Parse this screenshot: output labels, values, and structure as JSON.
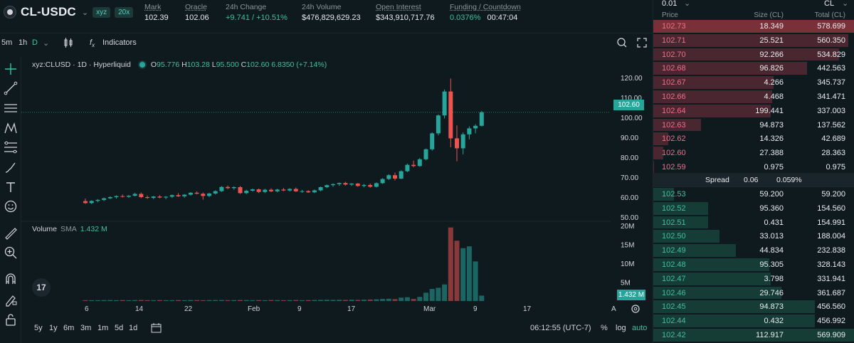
{
  "header": {
    "pair": "CL-USDC",
    "dex_tag": "xyz",
    "leverage_tag": "20x",
    "stats": [
      {
        "label": "Mark",
        "value": "102.39"
      },
      {
        "label": "Oracle",
        "value": "102.06"
      },
      {
        "label": "24h Change",
        "value": "+9.741 / +10.51%"
      },
      {
        "label": "24h Volume",
        "value": "$476,829,629.23"
      },
      {
        "label": "Open Interest",
        "value": "$343,910,717.76"
      },
      {
        "label": "Funding / Countdown",
        "value": "0.0376%",
        "countdown": "00:47:04"
      }
    ]
  },
  "toolbar": {
    "intervals": [
      "5m",
      "1h",
      "D"
    ],
    "active_interval": "D",
    "indicators_label": "Indicators"
  },
  "chart": {
    "symbol_line": "xyz:CLUSD · 1D · Hyperliquid",
    "o_label": "O",
    "o": "95.776",
    "h_label": "H",
    "h": "103.28",
    "l_label": "L",
    "l": "95.500",
    "c_label": "C",
    "c": "102.60",
    "change": "6.8350 (+7.14%)",
    "last_price_tag": "102.60",
    "volume_label": "Volume",
    "volume_sma_label": "SMA",
    "volume_value": "1.432 M",
    "volume_tag": "1.432 M"
  },
  "chart_data": {
    "type": "candlestick",
    "price_axis_ticks": [
      "120.00",
      "110.00",
      "100.00",
      "90.00",
      "80.00",
      "70.00",
      "60.00",
      "50.00"
    ],
    "price_ylim": [
      50,
      125
    ],
    "volume_axis_ticks": [
      "20M",
      "15M",
      "10M",
      "5M"
    ],
    "x_tick_labels": [
      "6",
      "14",
      "22",
      "Feb",
      "9",
      "17",
      "Mar",
      "9",
      "17"
    ],
    "candles": [
      {
        "o": 58.0,
        "h": 59.3,
        "l": 56.6,
        "c": 57.0
      },
      {
        "o": 57.0,
        "h": 58.4,
        "l": 56.5,
        "c": 58.1
      },
      {
        "o": 58.1,
        "h": 59.0,
        "l": 57.4,
        "c": 58.6
      },
      {
        "o": 58.6,
        "h": 59.8,
        "l": 58.0,
        "c": 59.4
      },
      {
        "o": 59.4,
        "h": 60.4,
        "l": 59.0,
        "c": 60.0
      },
      {
        "o": 60.0,
        "h": 60.9,
        "l": 59.3,
        "c": 60.5
      },
      {
        "o": 60.5,
        "h": 61.3,
        "l": 59.8,
        "c": 60.2
      },
      {
        "o": 60.2,
        "h": 61.0,
        "l": 59.6,
        "c": 60.7
      },
      {
        "o": 60.7,
        "h": 62.2,
        "l": 60.3,
        "c": 61.6
      },
      {
        "o": 61.6,
        "h": 62.3,
        "l": 59.5,
        "c": 60.0
      },
      {
        "o": 60.0,
        "h": 60.8,
        "l": 59.1,
        "c": 59.6
      },
      {
        "o": 59.6,
        "h": 60.6,
        "l": 59.0,
        "c": 60.3
      },
      {
        "o": 60.3,
        "h": 61.0,
        "l": 59.4,
        "c": 59.8
      },
      {
        "o": 59.8,
        "h": 60.5,
        "l": 58.9,
        "c": 60.2
      },
      {
        "o": 60.2,
        "h": 61.3,
        "l": 59.6,
        "c": 61.0
      },
      {
        "o": 61.0,
        "h": 62.0,
        "l": 60.1,
        "c": 60.4
      },
      {
        "o": 60.4,
        "h": 61.5,
        "l": 59.7,
        "c": 61.2
      },
      {
        "o": 61.2,
        "h": 62.5,
        "l": 60.8,
        "c": 62.2
      },
      {
        "o": 62.2,
        "h": 62.9,
        "l": 61.4,
        "c": 61.7
      },
      {
        "o": 61.7,
        "h": 62.3,
        "l": 58.7,
        "c": 60.6
      },
      {
        "o": 60.6,
        "h": 62.2,
        "l": 60.0,
        "c": 61.8
      },
      {
        "o": 61.8,
        "h": 63.4,
        "l": 61.3,
        "c": 63.0
      },
      {
        "o": 63.0,
        "h": 65.5,
        "l": 62.6,
        "c": 65.1
      },
      {
        "o": 65.1,
        "h": 65.8,
        "l": 64.0,
        "c": 64.5
      },
      {
        "o": 64.5,
        "h": 65.4,
        "l": 63.7,
        "c": 65.0
      },
      {
        "o": 65.0,
        "h": 65.6,
        "l": 61.6,
        "c": 62.0
      },
      {
        "o": 62.0,
        "h": 63.7,
        "l": 61.5,
        "c": 63.2
      },
      {
        "o": 63.2,
        "h": 64.3,
        "l": 62.8,
        "c": 63.9
      },
      {
        "o": 63.9,
        "h": 64.3,
        "l": 62.0,
        "c": 62.6
      },
      {
        "o": 62.6,
        "h": 64.2,
        "l": 62.0,
        "c": 63.7
      },
      {
        "o": 63.7,
        "h": 64.4,
        "l": 62.5,
        "c": 62.9
      },
      {
        "o": 62.9,
        "h": 64.2,
        "l": 62.4,
        "c": 63.8
      },
      {
        "o": 63.8,
        "h": 64.6,
        "l": 63.0,
        "c": 63.3
      },
      {
        "o": 63.3,
        "h": 64.5,
        "l": 62.8,
        "c": 64.1
      },
      {
        "o": 64.1,
        "h": 64.8,
        "l": 62.6,
        "c": 62.9
      },
      {
        "o": 62.9,
        "h": 63.6,
        "l": 62.2,
        "c": 63.0
      },
      {
        "o": 63.0,
        "h": 63.5,
        "l": 62.1,
        "c": 62.4
      },
      {
        "o": 62.4,
        "h": 63.8,
        "l": 62.0,
        "c": 63.4
      },
      {
        "o": 63.4,
        "h": 65.3,
        "l": 62.9,
        "c": 65.0
      },
      {
        "o": 65.0,
        "h": 66.3,
        "l": 64.5,
        "c": 66.0
      },
      {
        "o": 66.0,
        "h": 66.9,
        "l": 65.2,
        "c": 66.5
      },
      {
        "o": 66.5,
        "h": 67.3,
        "l": 65.6,
        "c": 67.1
      },
      {
        "o": 67.1,
        "h": 67.7,
        "l": 65.8,
        "c": 66.3
      },
      {
        "o": 66.3,
        "h": 67.0,
        "l": 65.6,
        "c": 66.8
      },
      {
        "o": 66.8,
        "h": 67.1,
        "l": 65.2,
        "c": 65.6
      },
      {
        "o": 65.6,
        "h": 66.6,
        "l": 64.9,
        "c": 66.1
      },
      {
        "o": 66.1,
        "h": 66.8,
        "l": 64.7,
        "c": 65.2
      },
      {
        "o": 65.2,
        "h": 67.4,
        "l": 64.8,
        "c": 67.0
      },
      {
        "o": 67.0,
        "h": 69.5,
        "l": 66.6,
        "c": 69.1
      },
      {
        "o": 69.1,
        "h": 71.5,
        "l": 68.6,
        "c": 71.0
      },
      {
        "o": 71.0,
        "h": 72.3,
        "l": 68.4,
        "c": 69.3
      },
      {
        "o": 69.3,
        "h": 73.5,
        "l": 69.0,
        "c": 73.0
      },
      {
        "o": 73.0,
        "h": 76.8,
        "l": 72.5,
        "c": 76.2
      },
      {
        "o": 76.2,
        "h": 78.3,
        "l": 75.0,
        "c": 75.6
      },
      {
        "o": 75.6,
        "h": 79.6,
        "l": 75.2,
        "c": 79.0
      },
      {
        "o": 79.0,
        "h": 84.4,
        "l": 78.5,
        "c": 84.0
      },
      {
        "o": 84.0,
        "h": 92.5,
        "l": 83.3,
        "c": 92.0
      },
      {
        "o": 92.0,
        "h": 101.5,
        "l": 91.0,
        "c": 101.0
      },
      {
        "o": 101.0,
        "h": 114.0,
        "l": 99.5,
        "c": 113.0
      },
      {
        "o": 113.0,
        "h": 119.5,
        "l": 85.0,
        "c": 89.5
      },
      {
        "o": 89.5,
        "h": 96.0,
        "l": 78.0,
        "c": 84.5
      },
      {
        "o": 84.5,
        "h": 92.5,
        "l": 81.5,
        "c": 91.5
      },
      {
        "o": 91.5,
        "h": 95.5,
        "l": 89.0,
        "c": 94.5
      },
      {
        "o": 94.5,
        "h": 96.6,
        "l": 92.0,
        "c": 95.78
      },
      {
        "o": 95.78,
        "h": 103.28,
        "l": 95.5,
        "c": 102.6
      }
    ],
    "volumes": [
      0.22,
      0.22,
      0.22,
      0.25,
      0.27,
      0.22,
      0.25,
      0.22,
      0.25,
      0.27,
      0.22,
      0.22,
      0.25,
      0.22,
      0.22,
      0.25,
      0.22,
      0.27,
      0.25,
      0.22,
      0.25,
      0.27,
      0.27,
      0.22,
      0.25,
      0.27,
      0.25,
      0.22,
      0.25,
      0.22,
      0.27,
      0.25,
      0.22,
      0.25,
      0.27,
      0.22,
      0.25,
      0.27,
      0.3,
      0.33,
      0.3,
      0.33,
      0.3,
      0.35,
      0.3,
      0.35,
      0.4,
      0.45,
      0.55,
      0.6,
      0.5,
      0.9,
      1.0,
      0.55,
      1.1,
      2.2,
      3.2,
      3.5,
      4.4,
      19.5,
      16.0,
      14.0,
      14.5,
      10.5,
      1.43
    ]
  },
  "bottombar": {
    "ranges": [
      "5y",
      "1y",
      "6m",
      "3m",
      "1m",
      "5d",
      "1d"
    ],
    "time": "06:12:55 (UTC-7)",
    "pct": "%",
    "log": "log",
    "auto": "auto"
  },
  "book": {
    "tick": "0.01",
    "unit": "CL",
    "col_price": "Price",
    "col_size": "Size (CL)",
    "col_total": "Total (CL)",
    "asks": [
      {
        "price": "102.73",
        "size": "18.349",
        "total": "578.699",
        "depth": 1.0
      },
      {
        "price": "102.71",
        "size": "25.521",
        "total": "560.350",
        "depth": 0.968
      },
      {
        "price": "102.70",
        "size": "92.266",
        "total": "534.829",
        "depth": 0.924
      },
      {
        "price": "102.68",
        "size": "96.826",
        "total": "442.563",
        "depth": 0.765
      },
      {
        "price": "102.67",
        "size": "4.266",
        "total": "345.737",
        "depth": 0.597
      },
      {
        "price": "102.66",
        "size": "4.468",
        "total": "341.471",
        "depth": 0.59
      },
      {
        "price": "102.64",
        "size": "199.441",
        "total": "337.003",
        "depth": 0.582
      },
      {
        "price": "102.63",
        "size": "94.873",
        "total": "137.562",
        "depth": 0.238
      },
      {
        "price": "102.62",
        "size": "14.326",
        "total": "42.689",
        "depth": 0.074
      },
      {
        "price": "102.60",
        "size": "27.388",
        "total": "28.363",
        "depth": 0.049
      },
      {
        "price": "102.59",
        "size": "0.975",
        "total": "0.975",
        "depth": 0.002
      }
    ],
    "spread_label": "Spread",
    "spread_value": "0.06",
    "spread_pct": "0.059%",
    "bids": [
      {
        "price": "102.53",
        "size": "59.200",
        "total": "59.200",
        "depth": 0.104
      },
      {
        "price": "102.52",
        "size": "95.360",
        "total": "154.560",
        "depth": 0.271
      },
      {
        "price": "102.51",
        "size": "0.431",
        "total": "154.991",
        "depth": 0.272
      },
      {
        "price": "102.50",
        "size": "33.013",
        "total": "188.004",
        "depth": 0.33
      },
      {
        "price": "102.49",
        "size": "44.834",
        "total": "232.838",
        "depth": 0.409
      },
      {
        "price": "102.48",
        "size": "95.305",
        "total": "328.143",
        "depth": 0.576
      },
      {
        "price": "102.47",
        "size": "3.798",
        "total": "331.941",
        "depth": 0.582
      },
      {
        "price": "102.46",
        "size": "29.746",
        "total": "361.687",
        "depth": 0.635
      },
      {
        "price": "102.45",
        "size": "94.873",
        "total": "456.560",
        "depth": 0.801
      },
      {
        "price": "102.44",
        "size": "0.432",
        "total": "456.992",
        "depth": 0.802
      },
      {
        "price": "102.42",
        "size": "112.917",
        "total": "569.909",
        "depth": 1.0
      }
    ]
  },
  "colors": {
    "up": "#26a69a",
    "down": "#ef5350",
    "accent": "#50d2c1",
    "ask_text": "#ed7088",
    "bid_text": "#3ec0a0",
    "bg": "#0f1a1f"
  }
}
